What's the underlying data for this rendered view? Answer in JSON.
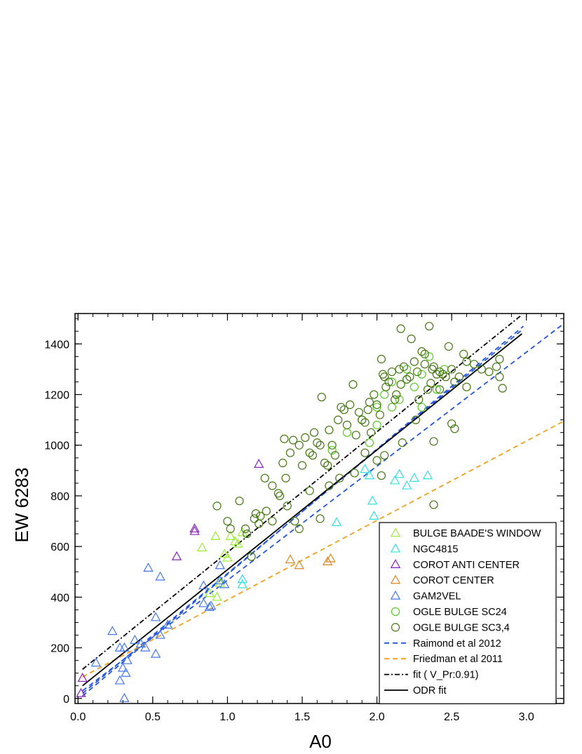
{
  "chart_data": {
    "type": "scatter",
    "title": "",
    "xlabel": "A0",
    "ylabel": "EW 6283",
    "xlim": [
      -0.02,
      3.25
    ],
    "ylim": [
      -20,
      1520
    ],
    "xticks": [
      0.0,
      0.5,
      1.0,
      1.5,
      2.0,
      2.5,
      3.0
    ],
    "xtick_labels": [
      "0.0",
      "0.5",
      "1.0",
      "1.5",
      "2.0",
      "2.5",
      "3.0"
    ],
    "yticks": [
      0,
      200,
      400,
      600,
      800,
      1000,
      1200,
      1400
    ],
    "ytick_labels": [
      "0",
      "200",
      "400",
      "600",
      "800",
      "1000",
      "1200",
      "1400"
    ],
    "grid": false,
    "legend_position": "bottom-right",
    "series": [
      {
        "name": "BULGE BAADE'S WINDOW",
        "marker": "triangle",
        "color": "#99ee33",
        "x": [
          0.83,
          0.92,
          0.95,
          0.98,
          1.0,
          1.02,
          1.05,
          1.07,
          1.1,
          0.88,
          0.93
        ],
        "y": [
          595,
          640,
          455,
          570,
          555,
          640,
          620,
          610,
          655,
          415,
          400
        ]
      },
      {
        "name": "NGC4815",
        "marker": "triangle",
        "color": "#33e0e0",
        "x": [
          1.1,
          1.1,
          1.73,
          1.92,
          1.97,
          1.98,
          2.12,
          2.15,
          2.2,
          2.25,
          2.34,
          1.95
        ],
        "y": [
          470,
          450,
          695,
          905,
          780,
          720,
          860,
          885,
          840,
          870,
          880,
          880
        ]
      },
      {
        "name": "COROT ANTI CENTER",
        "marker": "triangle",
        "color": "#8822bb",
        "x": [
          0.03,
          0.02,
          0.66,
          0.78,
          0.78,
          1.21
        ],
        "y": [
          80,
          20,
          560,
          670,
          660,
          925
        ]
      },
      {
        "name": "COROT CENTER",
        "marker": "triangle",
        "color": "#dd8822",
        "x": [
          1.42,
          1.48,
          1.67,
          1.69
        ],
        "y": [
          548,
          525,
          540,
          552
        ]
      },
      {
        "name": "GAM2VEL",
        "marker": "triangle",
        "color": "#4477ee",
        "x": [
          0.12,
          0.23,
          0.28,
          0.3,
          0.31,
          0.32,
          0.33,
          0.31,
          0.38,
          0.42,
          0.45,
          0.47,
          0.52,
          0.52,
          0.55,
          0.55,
          0.6,
          0.84,
          0.84,
          0.88,
          0.89,
          0.95,
          0.95,
          0.98,
          0.28
        ],
        "y": [
          140,
          265,
          70,
          120,
          200,
          100,
          150,
          0,
          230,
          215,
          200,
          515,
          175,
          320,
          250,
          480,
          290,
          445,
          375,
          360,
          365,
          525,
          465,
          450,
          200
        ]
      },
      {
        "name": "OGLE BULGE SC24",
        "marker": "circle",
        "color": "#55cc22",
        "x": [
          1.7,
          1.8,
          1.9,
          2.0,
          2.05,
          2.1,
          2.15,
          2.2,
          2.25,
          2.3,
          2.35,
          2.4,
          2.1,
          2.0,
          1.95,
          2.2,
          2.3,
          2.45
        ],
        "y": [
          980,
          1050,
          1100,
          1150,
          1200,
          1250,
          1180,
          1300,
          1230,
          1280,
          1350,
          1220,
          1150,
          1080,
          1010,
          1260,
          1150,
          1300
        ]
      },
      {
        "name": "OGLE BULGE SC3,4",
        "marker": "circle",
        "color": "#447711",
        "x": [
          0.93,
          1.0,
          1.02,
          1.08,
          1.12,
          1.16,
          1.18,
          1.19,
          1.21,
          1.22,
          1.25,
          1.26,
          1.3,
          1.34,
          1.35,
          1.37,
          1.39,
          1.4,
          1.42,
          1.44,
          1.45,
          1.48,
          1.5,
          1.52,
          1.55,
          1.57,
          1.58,
          1.6,
          1.62,
          1.63,
          1.65,
          1.67,
          1.68,
          1.7,
          1.72,
          1.74,
          1.76,
          1.78,
          1.8,
          1.82,
          1.84,
          1.86,
          1.88,
          1.9,
          1.92,
          1.94,
          1.95,
          1.96,
          1.98,
          2.0,
          2.02,
          2.03,
          2.04,
          2.05,
          2.06,
          2.08,
          2.1,
          2.12,
          2.13,
          2.15,
          2.16,
          2.18,
          2.2,
          2.22,
          2.23,
          2.25,
          2.27,
          2.28,
          2.3,
          2.32,
          2.34,
          2.35,
          2.37,
          2.38,
          2.4,
          2.42,
          2.44,
          2.46,
          2.48,
          2.5,
          2.52,
          2.55,
          2.58,
          2.6,
          2.65,
          2.7,
          2.75,
          2.8,
          2.82,
          2.84,
          2.16,
          2.32,
          2.03,
          1.85,
          1.62,
          1.3,
          1.13,
          2.38,
          2.5,
          2.05,
          2.52,
          2.82,
          2.17,
          2.26,
          2.38,
          1.48,
          1.38,
          1.55,
          1.75,
          2.42,
          1.92,
          2.0,
          1.68,
          2.36,
          2.6
        ],
        "y": [
          760,
          700,
          670,
          780,
          670,
          560,
          710,
          730,
          690,
          720,
          870,
          740,
          840,
          810,
          800,
          930,
          870,
          760,
          970,
          1020,
          700,
          1000,
          920,
          1030,
          970,
          960,
          1050,
          1010,
          1000,
          1190,
          930,
          920,
          1060,
          1000,
          960,
          1100,
          1150,
          1140,
          1080,
          1160,
          1240,
          1040,
          1130,
          1100,
          1090,
          1140,
          1170,
          1050,
          1200,
          1160,
          1120,
          1340,
          1280,
          1270,
          1230,
          1250,
          1290,
          1180,
          1200,
          1300,
          1240,
          1310,
          1260,
          1270,
          1420,
          1330,
          1290,
          1180,
          1370,
          1320,
          1220,
          1470,
          1300,
          1310,
          1280,
          1290,
          1280,
          1270,
          1390,
          1300,
          1250,
          1270,
          1360,
          1330,
          1320,
          1300,
          1290,
          1310,
          1270,
          1225,
          1460,
          1360,
          880,
          890,
          710,
          700,
          650,
          1015,
          1085,
          960,
          1065,
          1340,
          1010,
          1100,
          765,
          670,
          1025,
          820,
          870,
          1220,
          970,
          940,
          840,
          1245,
          1230
        ]
      }
    ],
    "lines": [
      {
        "name": "Raimond et al 2012",
        "style": "dashed",
        "color": "#2255dd",
        "x": [
          0.03,
          3.25
        ],
        "y": [
          30,
          1480
        ]
      },
      {
        "name": "Friedman et al 2011",
        "style": "dashed",
        "color": "#f0a020",
        "x": [
          0.03,
          3.25
        ],
        "y": [
          85,
          1095
        ]
      },
      {
        "name": "fit ( V_Pr:0.91)",
        "style": "dashdot",
        "color": "#000000",
        "x": [
          0.03,
          2.97
        ],
        "y": [
          115,
          1515
        ]
      },
      {
        "name": "ODR fit",
        "style": "solid",
        "color": "#000000",
        "x": [
          0.03,
          2.97
        ],
        "y": [
          50,
          1440
        ]
      }
    ],
    "extra_lines": [
      {
        "style": "dashed",
        "color": "#2255dd",
        "x": [
          0.03,
          2.98
        ],
        "y": [
          10,
          1470
        ]
      },
      {
        "style": "dashed",
        "color": "#2255dd",
        "x": [
          0.03,
          2.98
        ],
        "y": [
          20,
          1460
        ]
      }
    ]
  }
}
